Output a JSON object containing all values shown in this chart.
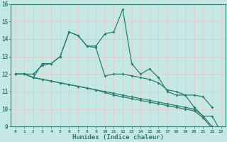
{
  "title": "",
  "xlabel": "Humidex (Indice chaleur)",
  "x": [
    0,
    1,
    2,
    3,
    4,
    5,
    6,
    7,
    8,
    9,
    10,
    11,
    12,
    13,
    14,
    15,
    16,
    17,
    18,
    19,
    20,
    21,
    22,
    23
  ],
  "line1": [
    12.0,
    12.0,
    12.0,
    12.5,
    12.6,
    13.0,
    14.4,
    14.2,
    13.6,
    13.6,
    14.3,
    14.4,
    15.7,
    12.6,
    12.0,
    12.3,
    11.8,
    11.0,
    10.8,
    10.8,
    10.1,
    9.6,
    9.6,
    8.7
  ],
  "line2": [
    12.0,
    12.0,
    11.8,
    12.6,
    12.6,
    13.0,
    14.4,
    14.2,
    13.6,
    13.5,
    11.9,
    12.0,
    12.0,
    11.9,
    11.8,
    11.7,
    11.5,
    11.1,
    11.0,
    10.8,
    10.8,
    10.7,
    10.1,
    null
  ],
  "line3": [
    12.0,
    12.0,
    11.8,
    11.7,
    11.6,
    11.5,
    11.4,
    11.3,
    11.2,
    11.1,
    11.0,
    10.9,
    10.8,
    10.7,
    10.6,
    10.5,
    10.4,
    10.3,
    10.2,
    10.1,
    10.0,
    9.6,
    9.0,
    8.7
  ],
  "line4": [
    12.0,
    12.0,
    11.8,
    11.7,
    11.6,
    11.5,
    11.4,
    11.3,
    11.2,
    11.1,
    10.95,
    10.8,
    10.7,
    10.6,
    10.5,
    10.4,
    10.3,
    10.2,
    10.1,
    10.0,
    9.9,
    9.5,
    8.9,
    null
  ],
  "color": "#2e7d6e",
  "bg_color": "#c5e8e5",
  "grid_color": "#b0d8d5",
  "ylim": [
    9,
    16
  ],
  "xlim": [
    -0.5,
    23.5
  ],
  "yticks": [
    9,
    10,
    11,
    12,
    13,
    14,
    15,
    16
  ],
  "xticks": [
    0,
    1,
    2,
    3,
    4,
    5,
    6,
    7,
    8,
    9,
    10,
    11,
    12,
    13,
    14,
    15,
    16,
    17,
    18,
    19,
    20,
    21,
    22,
    23
  ]
}
